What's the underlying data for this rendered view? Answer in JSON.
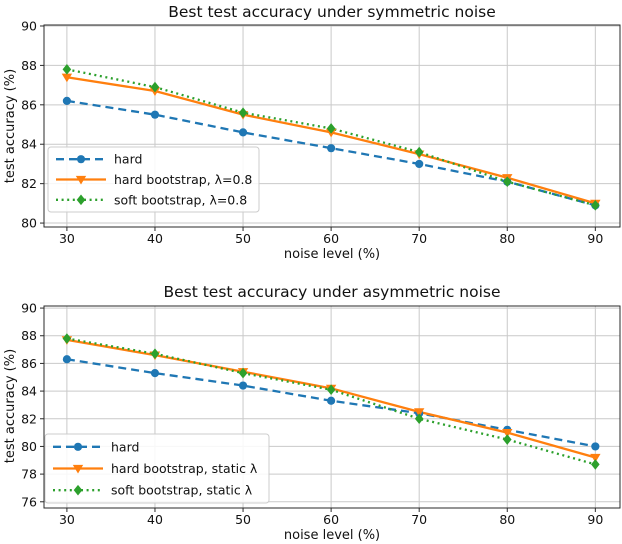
{
  "figure": {
    "background": "#ffffff",
    "text_color": "#111111",
    "grid_color": "#c9c9c9",
    "spine_color": "#2a2a2a",
    "legend_border": "#cccccc",
    "legend_background": "rgba(255,255,255,0.85)"
  },
  "chart_data": [
    {
      "type": "line",
      "title": "Best test accuracy under symmetric noise",
      "xlabel": "noise level (%)",
      "ylabel": "test accuracy (%)",
      "x": [
        30,
        40,
        50,
        60,
        70,
        80,
        90
      ],
      "xticks": [
        30,
        40,
        50,
        60,
        70,
        80,
        90
      ],
      "yticks": [
        80,
        82,
        84,
        86,
        88,
        90
      ],
      "xlim": [
        27.4,
        92.8
      ],
      "ylim": [
        79.8,
        90.05
      ],
      "grid": true,
      "legend_position": "lower-left",
      "series": [
        {
          "name": "hard",
          "color": "#1f77b4",
          "line": "dashed",
          "marker": "circle",
          "values": [
            86.2,
            85.5,
            84.6,
            83.8,
            83.0,
            82.1,
            80.9
          ]
        },
        {
          "name": "hard bootstrap, λ=0.8",
          "color": "#ff7f0e",
          "line": "solid",
          "marker": "triangle-down",
          "values": [
            87.4,
            86.7,
            85.5,
            84.6,
            83.5,
            82.3,
            81.0
          ]
        },
        {
          "name": "soft bootstrap, λ=0.8",
          "color": "#2ca02c",
          "line": "dotted",
          "marker": "diamond",
          "values": [
            87.8,
            86.9,
            85.6,
            84.8,
            83.6,
            82.1,
            80.9
          ]
        }
      ]
    },
    {
      "type": "line",
      "title": "Best test accuracy under asymmetric noise",
      "xlabel": "noise level (%)",
      "ylabel": "test accuracy (%)",
      "x": [
        30,
        40,
        50,
        60,
        70,
        80,
        90
      ],
      "xticks": [
        30,
        40,
        50,
        60,
        70,
        80,
        90
      ],
      "yticks": [
        76,
        78,
        80,
        82,
        84,
        86,
        88,
        90
      ],
      "xlim": [
        27.4,
        92.8
      ],
      "ylim": [
        75.55,
        90.15
      ],
      "grid": true,
      "legend_position": "lower-left",
      "series": [
        {
          "name": "hard",
          "color": "#1f77b4",
          "line": "dashed",
          "marker": "circle",
          "values": [
            86.3,
            85.3,
            84.4,
            83.3,
            82.4,
            81.2,
            80.0
          ]
        },
        {
          "name": "hard bootstrap, static λ",
          "color": "#ff7f0e",
          "line": "solid",
          "marker": "triangle-down",
          "values": [
            87.7,
            86.6,
            85.4,
            84.2,
            82.5,
            81.0,
            79.2
          ]
        },
        {
          "name": "soft bootstrap, static λ",
          "color": "#2ca02c",
          "line": "dotted",
          "marker": "diamond",
          "values": [
            87.8,
            86.7,
            85.3,
            84.1,
            82.0,
            80.5,
            78.7
          ]
        }
      ]
    }
  ]
}
